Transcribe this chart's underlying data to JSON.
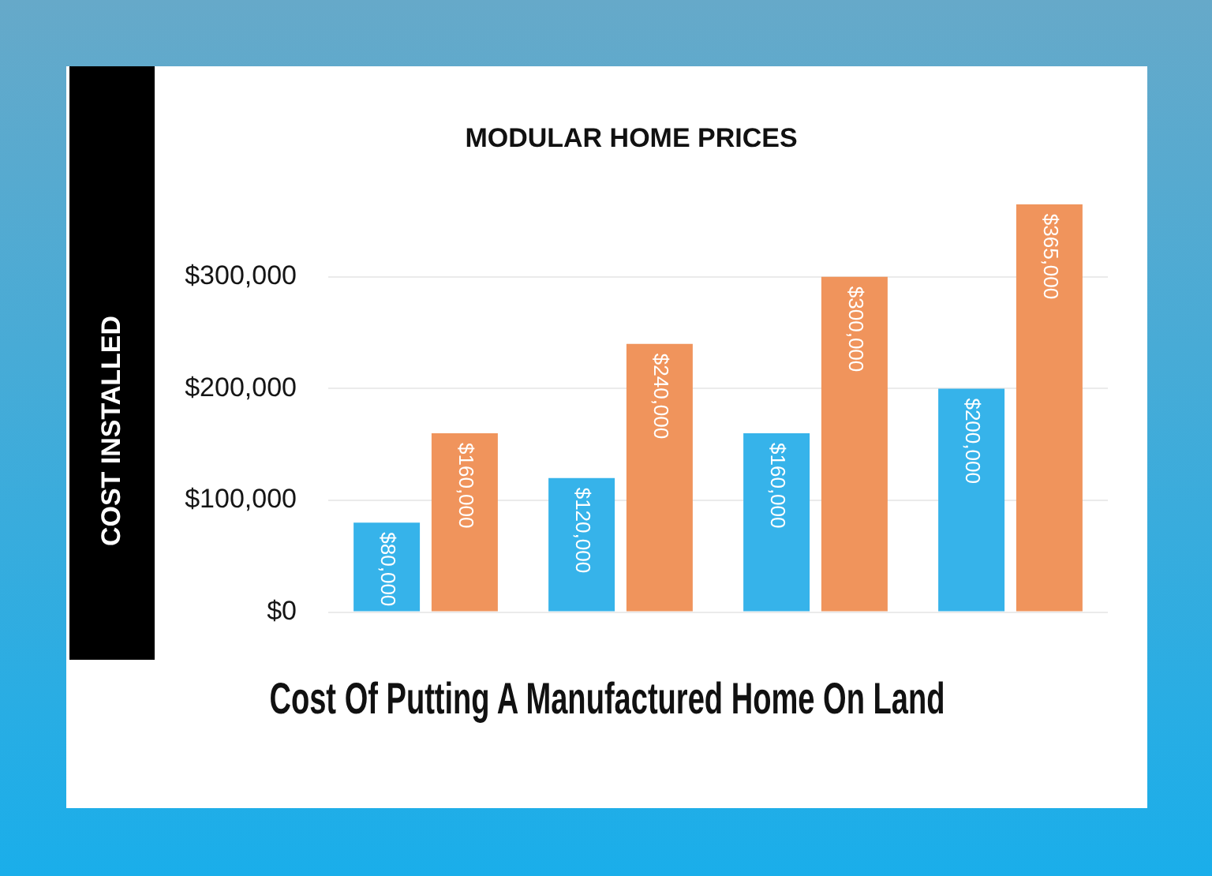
{
  "chart_data": {
    "type": "bar",
    "title": "MODULAR HOME PRICES",
    "ylabel": "COST INSTALLED",
    "categories": [
      null,
      null,
      null,
      null
    ],
    "series": [
      {
        "color": "#36b3ea",
        "values": [
          80000,
          120000,
          160000,
          200000
        ],
        "value_labels": [
          "$80,000",
          "$120,000",
          "$160,000",
          "$200,000"
        ]
      },
      {
        "color": "#f0945c",
        "values": [
          160000,
          240000,
          300000,
          365000
        ],
        "value_labels": [
          "$160,000",
          "$240,000",
          "$300,000",
          "$365,000"
        ]
      }
    ],
    "ylim": [
      0,
      365000
    ],
    "yticks": [
      {
        "value": 0,
        "label": "$0"
      },
      {
        "value": 100000,
        "label": "$100,000"
      },
      {
        "value": 200000,
        "label": "$200,000"
      },
      {
        "value": 300000,
        "label": "$300,000"
      }
    ],
    "grid": "y",
    "legend": false,
    "annotations": [
      "Cost Of Putting A Manufactured Home On Land"
    ]
  }
}
